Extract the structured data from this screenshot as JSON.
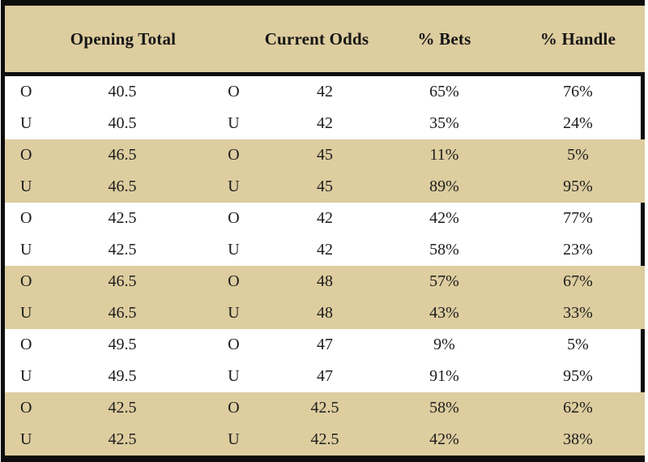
{
  "table": {
    "headers": {
      "opening_total": "Opening Total",
      "current_odds": "Current Odds",
      "pct_bets": "% Bets",
      "pct_handle": "% Handle"
    },
    "rows": [
      {
        "ou_open": "O",
        "opening_total": "40.5",
        "ou_current": "O",
        "current_odds": "42",
        "pct_bets": "65%",
        "pct_handle": "76%",
        "shaded": false
      },
      {
        "ou_open": "U",
        "opening_total": "40.5",
        "ou_current": "U",
        "current_odds": "42",
        "pct_bets": "35%",
        "pct_handle": "24%",
        "shaded": false
      },
      {
        "ou_open": "O",
        "opening_total": "46.5",
        "ou_current": "O",
        "current_odds": "45",
        "pct_bets": "11%",
        "pct_handle": "5%",
        "shaded": true
      },
      {
        "ou_open": "U",
        "opening_total": "46.5",
        "ou_current": "U",
        "current_odds": "45",
        "pct_bets": "89%",
        "pct_handle": "95%",
        "shaded": true
      },
      {
        "ou_open": "O",
        "opening_total": "42.5",
        "ou_current": "O",
        "current_odds": "42",
        "pct_bets": "42%",
        "pct_handle": "77%",
        "shaded": false
      },
      {
        "ou_open": "U",
        "opening_total": "42.5",
        "ou_current": "U",
        "current_odds": "42",
        "pct_bets": "58%",
        "pct_handle": "23%",
        "shaded": false
      },
      {
        "ou_open": "O",
        "opening_total": "46.5",
        "ou_current": "O",
        "current_odds": "48",
        "pct_bets": "57%",
        "pct_handle": "67%",
        "shaded": true
      },
      {
        "ou_open": "U",
        "opening_total": "46.5",
        "ou_current": "U",
        "current_odds": "48",
        "pct_bets": "43%",
        "pct_handle": "33%",
        "shaded": true
      },
      {
        "ou_open": "O",
        "opening_total": "49.5",
        "ou_current": "O",
        "current_odds": "47",
        "pct_bets": "9%",
        "pct_handle": "5%",
        "shaded": false
      },
      {
        "ou_open": "U",
        "opening_total": "49.5",
        "ou_current": "U",
        "current_odds": "47",
        "pct_bets": "91%",
        "pct_handle": "95%",
        "shaded": false
      },
      {
        "ou_open": "O",
        "opening_total": "42.5",
        "ou_current": "O",
        "current_odds": "42.5",
        "pct_bets": "58%",
        "pct_handle": "62%",
        "shaded": true
      },
      {
        "ou_open": "U",
        "opening_total": "42.5",
        "ou_current": "U",
        "current_odds": "42.5",
        "pct_bets": "42%",
        "pct_handle": "38%",
        "shaded": true
      }
    ]
  },
  "colors": {
    "band": "#ddcd9f",
    "border": "#0e0e0e",
    "text": "#1c1c1c"
  }
}
